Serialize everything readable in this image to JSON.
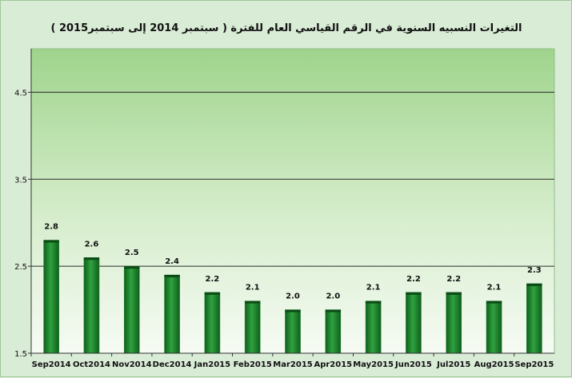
{
  "chart_data": {
    "type": "bar",
    "title": "التغيرات النسبيه السنوية في الرقم القياسي العام للفترة ( سبتمبر 2014 إلى سبتمبر2015 )",
    "categories": [
      "Sep2014",
      "Oct2014",
      "Nov2014",
      "Dec2014",
      "Jan2015",
      "Feb2015",
      "Mar2015",
      "Apr2015",
      "May2015",
      "Jun2015",
      "Jul2015",
      "Aug2015",
      "Sep2015"
    ],
    "values": [
      2.8,
      2.6,
      2.5,
      2.4,
      2.2,
      2.1,
      2.0,
      2.0,
      2.1,
      2.2,
      2.2,
      2.1,
      2.3
    ],
    "value_labels": [
      "2.8",
      "2.6",
      "2.5",
      "2.4",
      "2.2",
      "2.1",
      "2.0",
      "2.0",
      "2.1",
      "2.2",
      "2.2",
      "2.1",
      "2.3"
    ],
    "ylim": [
      1.5,
      5.0
    ],
    "yticks": [
      1.5,
      2.5,
      3.5,
      4.5
    ],
    "ytick_labels": [
      "1.5",
      "2.5",
      "3.5",
      "4.5"
    ],
    "xlabel": "",
    "ylabel": "",
    "grid": true,
    "bar_color": "#1f8a2e",
    "plot_background_top": "#9fd48c",
    "plot_background_bottom": "#f6fbf4"
  }
}
